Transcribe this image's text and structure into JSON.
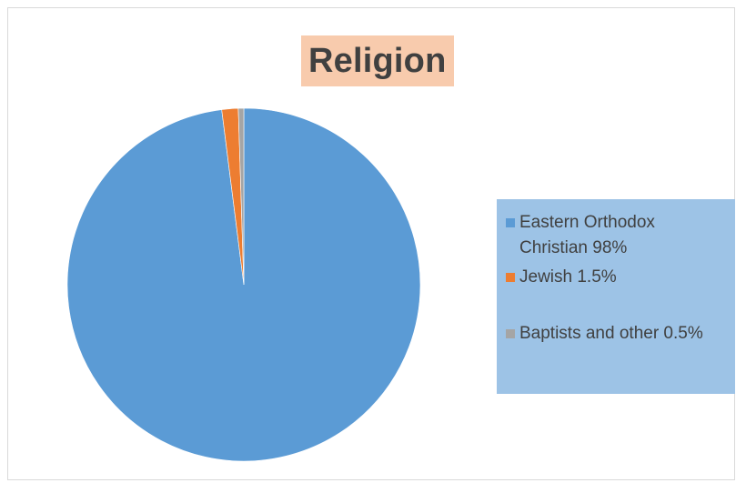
{
  "chart_data": {
    "type": "pie",
    "title": "Religion",
    "categories": [
      "Eastern Orthodox Christian 98%",
      "Jewish 1.5%",
      "Baptists and other 0.5%"
    ],
    "values": [
      98,
      1.5,
      0.5
    ],
    "colors": [
      "#5b9bd5",
      "#ed7d31",
      "#a5a5a5"
    ],
    "legend_position": "right",
    "title_background": "#f8cbad",
    "legend_background": "#9dc3e6"
  }
}
